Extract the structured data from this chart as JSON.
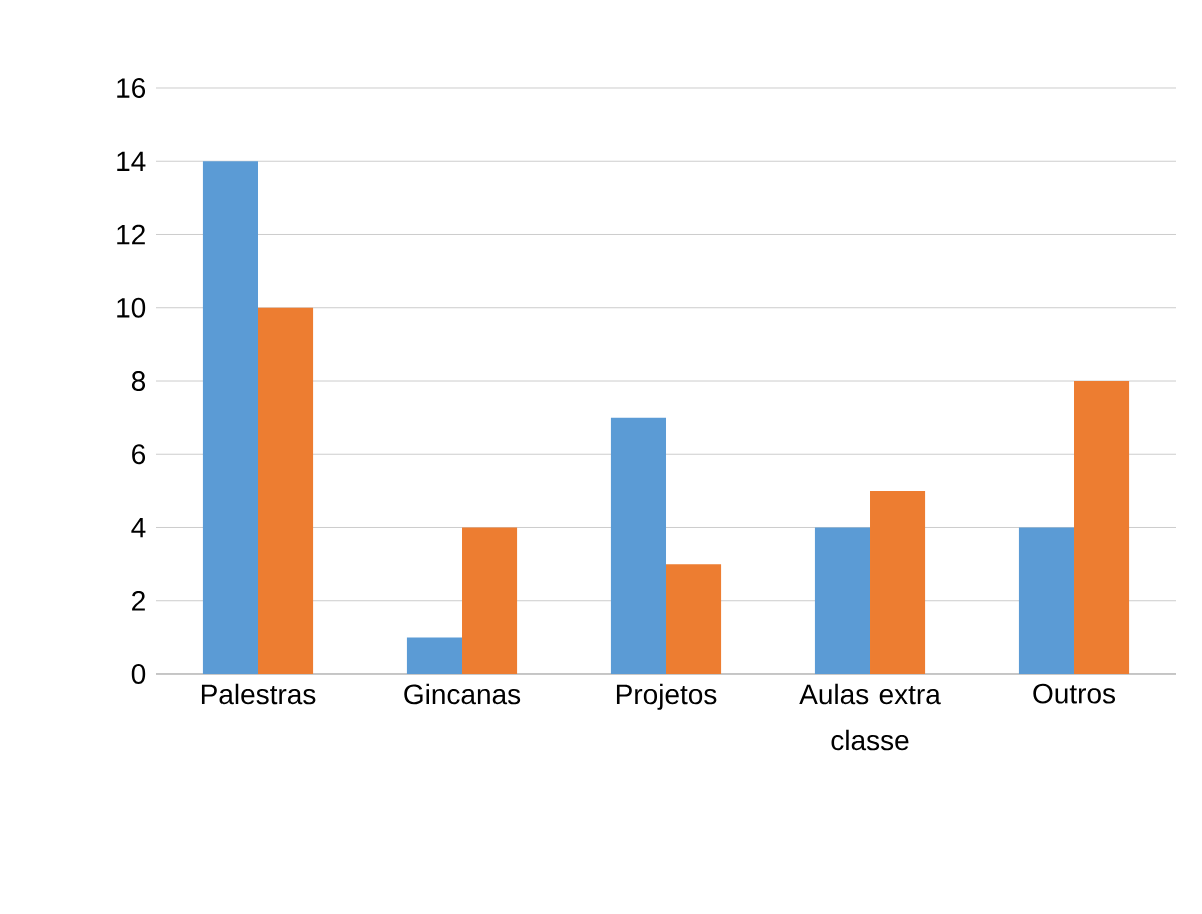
{
  "chart_data": {
    "type": "bar",
    "categories": [
      "Palestras",
      "Gincanas",
      "Projetos",
      "Aulas extra classe",
      "Outros"
    ],
    "series": [
      {
        "color": "#5b9bd5",
        "values": [
          14,
          1,
          7,
          4,
          4
        ]
      },
      {
        "color": "#ed7d31",
        "values": [
          10,
          4,
          3,
          5,
          8
        ]
      }
    ],
    "ylim": [
      0,
      16
    ],
    "yticks": [
      0,
      2,
      4,
      6,
      8,
      10,
      12,
      14,
      16
    ],
    "grid": "y"
  }
}
